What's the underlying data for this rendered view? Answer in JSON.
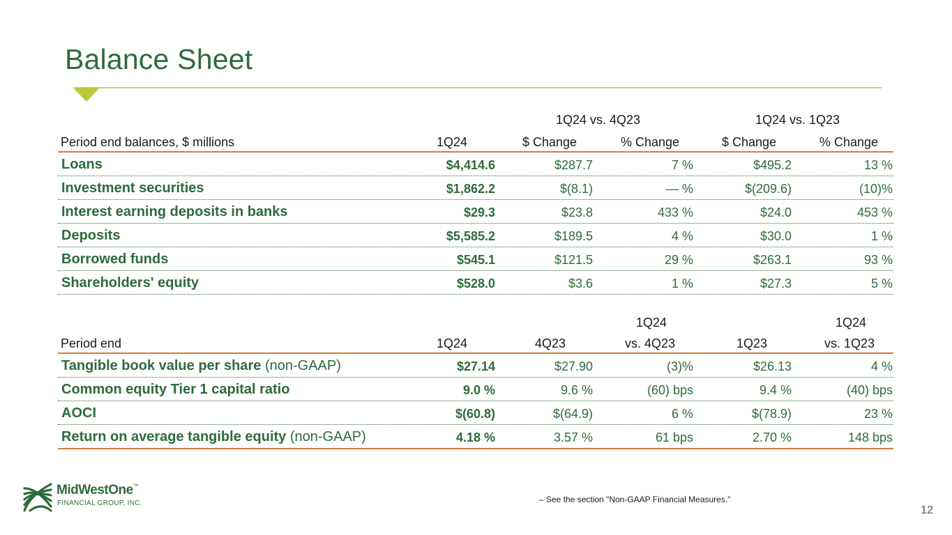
{
  "title": "Balance Sheet",
  "table1": {
    "group_headers": [
      "1Q24 vs. 4Q23",
      "1Q24 vs. 1Q23"
    ],
    "headers": [
      "Period end balances, $ millions",
      "1Q24",
      "$ Change",
      "% Change",
      "$ Change",
      "% Change"
    ],
    "rows": [
      {
        "label": "Loans",
        "c1": "$4,414.6",
        "c2": "$287.7",
        "c3": "7 %",
        "c4": "$495.2",
        "c5": "13 %"
      },
      {
        "label": "Investment securities",
        "c1": "$1,862.2",
        "c2": "$(8.1)",
        "c3": "— %",
        "c4": "$(209.6)",
        "c5": "(10)%"
      },
      {
        "label": "Interest earning deposits in banks",
        "c1": "$29.3",
        "c2": "$23.8",
        "c3": "433 %",
        "c4": "$24.0",
        "c5": "453 %"
      },
      {
        "label": "Deposits",
        "c1": "$5,585.2",
        "c2": "$189.5",
        "c3": "4 %",
        "c4": "$30.0",
        "c5": "1 %"
      },
      {
        "label": "Borrowed funds",
        "c1": "$545.1",
        "c2": "$121.5",
        "c3": "29 %",
        "c4": "$263.1",
        "c5": "93 %"
      },
      {
        "label": "Shareholders' equity",
        "c1": "$528.0",
        "c2": "$3.6",
        "c3": "1 %",
        "c4": "$27.3",
        "c5": "5 %"
      }
    ]
  },
  "table2": {
    "group_headers": [
      "1Q24",
      "1Q24"
    ],
    "headers": [
      "Period end",
      "1Q24",
      "4Q23",
      "vs. 4Q23",
      "1Q23",
      "vs. 1Q23"
    ],
    "rows": [
      {
        "label": "Tangible book value per share",
        "suffix": " (non-GAAP)",
        "c1": "$27.14",
        "c2": "$27.90",
        "c3": "(3)%",
        "c4": "$26.13",
        "c5": "4 %"
      },
      {
        "label": "Common equity Tier 1 capital ratio",
        "suffix": "",
        "c1": "9.0 %",
        "c2": "9.6 %",
        "c3": "(60) bps",
        "c4": "9.4 %",
        "c5": "(40) bps"
      },
      {
        "label": "AOCI",
        "suffix": "",
        "c1": "$(60.8)",
        "c2": "$(64.9)",
        "c3": "6 %",
        "c4": "$(78.9)",
        "c5": "23 %"
      },
      {
        "label": "Return on average tangible equity",
        "suffix": " (non-GAAP)",
        "c1": "4.18 %",
        "c2": "3.57 %",
        "c3": "61 bps",
        "c4": "2.70 %",
        "c5": "148 bps"
      }
    ]
  },
  "footnote": "–     See the section \"Non-GAAP Financial Measures.\"",
  "page_number": "12",
  "logo": {
    "name": "MidWestOne",
    "tm": "™",
    "sub": "FINANCIAL GROUP, INC."
  },
  "colors": {
    "green": "#2e6b3a",
    "orange_rule": "#d97a3a",
    "lime_accent": "#b8c93c"
  }
}
